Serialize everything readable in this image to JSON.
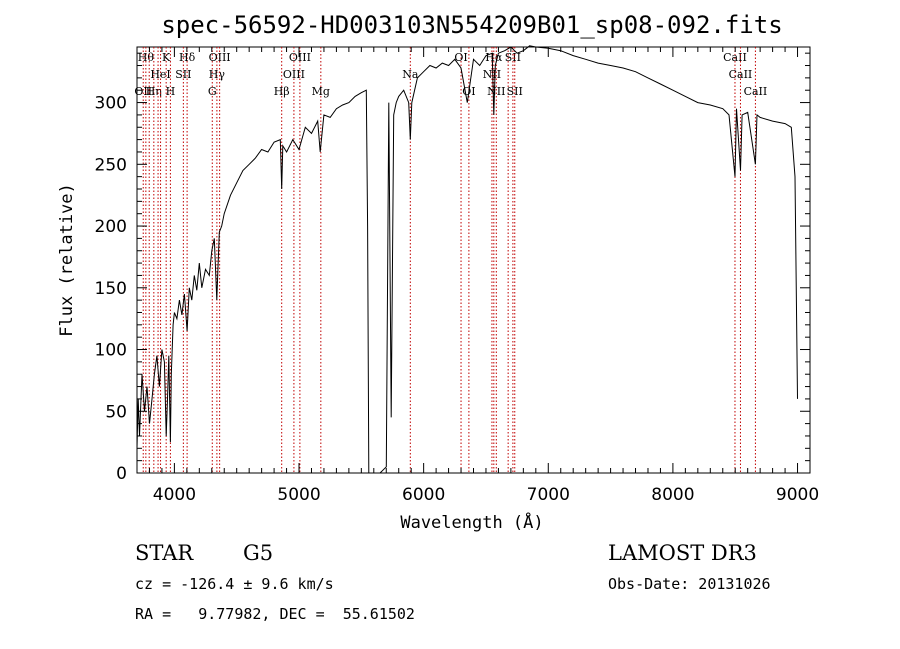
{
  "chart_data": {
    "type": "line",
    "title": "spec-56592-HD003103N554209B01_sp08-092.fits",
    "xlabel": "Wavelength (Å)",
    "ylabel": "Flux (relative)",
    "xlim": [
      3700,
      9100
    ],
    "ylim": [
      0,
      345
    ],
    "xticks": [
      4000,
      5000,
      6000,
      7000,
      8000,
      9000
    ],
    "yticks": [
      0,
      50,
      100,
      150,
      200,
      250,
      300
    ],
    "grid": false,
    "series": [
      {
        "x": [
          3700,
          3710,
          3720,
          3740,
          3760,
          3780,
          3800,
          3820,
          3840,
          3860,
          3880,
          3900,
          3920,
          3934,
          3945,
          3955,
          3968,
          3975,
          3990,
          4000,
          4020,
          4040,
          4060,
          4080,
          4102,
          4120,
          4140,
          4160,
          4180,
          4200,
          4220,
          4250,
          4280,
          4300,
          4320,
          4340,
          4360,
          4380,
          4400,
          4450,
          4500,
          4550,
          4600,
          4650,
          4700,
          4750,
          4800,
          4850,
          4861,
          4870,
          4900,
          4950,
          5000,
          5050,
          5100,
          5150,
          5170,
          5200,
          5250,
          5300,
          5350,
          5400,
          5450,
          5500,
          5540,
          5550,
          5560,
          5650,
          5700,
          5720,
          5740,
          5760,
          5780,
          5800,
          5840,
          5880,
          5893,
          5905,
          5950,
          6000,
          6050,
          6100,
          6150,
          6200,
          6250,
          6300,
          6350,
          6400,
          6450,
          6500,
          6550,
          6563,
          6575,
          6600,
          6650,
          6700,
          6750,
          6800,
          6850,
          6900,
          7000,
          7100,
          7200,
          7300,
          7400,
          7500,
          7600,
          7700,
          7800,
          7900,
          8000,
          8100,
          8200,
          8300,
          8400,
          8450,
          8498,
          8510,
          8542,
          8555,
          8600,
          8662,
          8675,
          8700,
          8800,
          8900,
          8950,
          8980,
          9000
        ],
        "y": [
          20,
          60,
          30,
          80,
          50,
          70,
          40,
          60,
          80,
          95,
          70,
          100,
          90,
          30,
          60,
          95,
          25,
          80,
          120,
          130,
          125,
          140,
          128,
          145,
          115,
          150,
          140,
          160,
          148,
          170,
          150,
          165,
          160,
          180,
          190,
          140,
          195,
          200,
          210,
          225,
          235,
          245,
          250,
          255,
          262,
          260,
          268,
          270,
          230,
          265,
          260,
          270,
          262,
          280,
          275,
          285,
          260,
          290,
          288,
          295,
          298,
          300,
          305,
          308,
          310,
          200,
          0,
          0,
          5,
          300,
          45,
          290,
          300,
          305,
          310,
          300,
          270,
          300,
          320,
          325,
          330,
          328,
          332,
          330,
          335,
          328,
          300,
          335,
          330,
          338,
          340,
          290,
          330,
          340,
          342,
          345,
          340,
          342,
          346,
          345,
          344,
          342,
          338,
          335,
          332,
          330,
          328,
          325,
          320,
          315,
          310,
          305,
          300,
          298,
          295,
          290,
          240,
          295,
          245,
          290,
          292,
          250,
          290,
          288,
          285,
          283,
          280,
          240,
          60
        ]
      }
    ],
    "line_markers": [
      {
        "wl": 3750,
        "label": "OII",
        "row": 3
      },
      {
        "wl": 3771,
        "label": "Hθ",
        "row": 1
      },
      {
        "wl": 3798,
        "label": "",
        "row": 0
      },
      {
        "wl": 3835,
        "label": "Hη",
        "row": 3
      },
      {
        "wl": 3869,
        "label": "",
        "row": 0
      },
      {
        "wl": 3889,
        "label": "HeI",
        "row": 2
      },
      {
        "wl": 3934,
        "label": "K",
        "row": 1
      },
      {
        "wl": 3968,
        "label": "H",
        "row": 3
      },
      {
        "wl": 4072,
        "label": "SII",
        "row": 2
      },
      {
        "wl": 4102,
        "label": "Hδ",
        "row": 1
      },
      {
        "wl": 4304,
        "label": "G",
        "row": 3
      },
      {
        "wl": 4341,
        "label": "Hγ",
        "row": 2
      },
      {
        "wl": 4363,
        "label": "OIII",
        "row": 1
      },
      {
        "wl": 4861,
        "label": "Hβ",
        "row": 3
      },
      {
        "wl": 4959,
        "label": "OIII",
        "row": 2
      },
      {
        "wl": 5007,
        "label": "OIII",
        "row": 1
      },
      {
        "wl": 5175,
        "label": "Mg",
        "row": 3
      },
      {
        "wl": 5893,
        "label": "Na",
        "row": 2
      },
      {
        "wl": 6300,
        "label": "OI",
        "row": 1
      },
      {
        "wl": 6363,
        "label": "OI",
        "row": 3
      },
      {
        "wl": 6548,
        "label": "NII",
        "row": 2
      },
      {
        "wl": 6563,
        "label": "Hα",
        "row": 1
      },
      {
        "wl": 6583,
        "label": "NII",
        "row": 3
      },
      {
        "wl": 6678,
        "label": "",
        "row": 0
      },
      {
        "wl": 6716,
        "label": "SII",
        "row": 1
      },
      {
        "wl": 6731,
        "label": "SII",
        "row": 3
      },
      {
        "wl": 8498,
        "label": "CaII",
        "row": 1
      },
      {
        "wl": 8542,
        "label": "CaII",
        "row": 2
      },
      {
        "wl": 8662,
        "label": "CaII",
        "row": 3
      }
    ]
  },
  "info": {
    "object_class": "STAR",
    "subclass": "G5",
    "survey": "LAMOST DR3",
    "redshift_line": "cz = -126.4 ± 9.6 km/s",
    "obs_date": "Obs-Date: 20131026",
    "coords": "RA =   9.77982, DEC =  55.61502"
  },
  "colors": {
    "spectrum": "#000000",
    "line_markers": "#c00000",
    "axes": "#000000",
    "background": "#ffffff"
  }
}
